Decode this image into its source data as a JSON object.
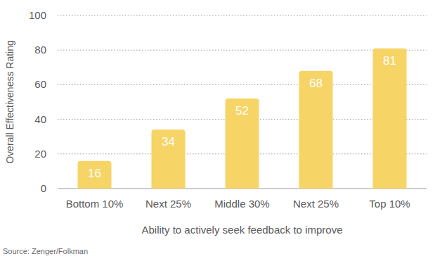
{
  "chart_data": {
    "type": "bar",
    "y_label": "Overall Effectiveness Rating",
    "x_label": "Ability to actively seek feedback to improve",
    "source": "Source: Zenger/Folkman",
    "categories": [
      "Bottom 10%",
      "Next 25%",
      "Middle 30%",
      "Next 25%",
      "Top 10%"
    ],
    "values": [
      16,
      34,
      52,
      68,
      81
    ],
    "color": "#f6d466",
    "ylim": [
      0,
      100
    ],
    "yticks": [
      0,
      20,
      40,
      60,
      80,
      100
    ],
    "grid": true,
    "data_labels": true
  }
}
